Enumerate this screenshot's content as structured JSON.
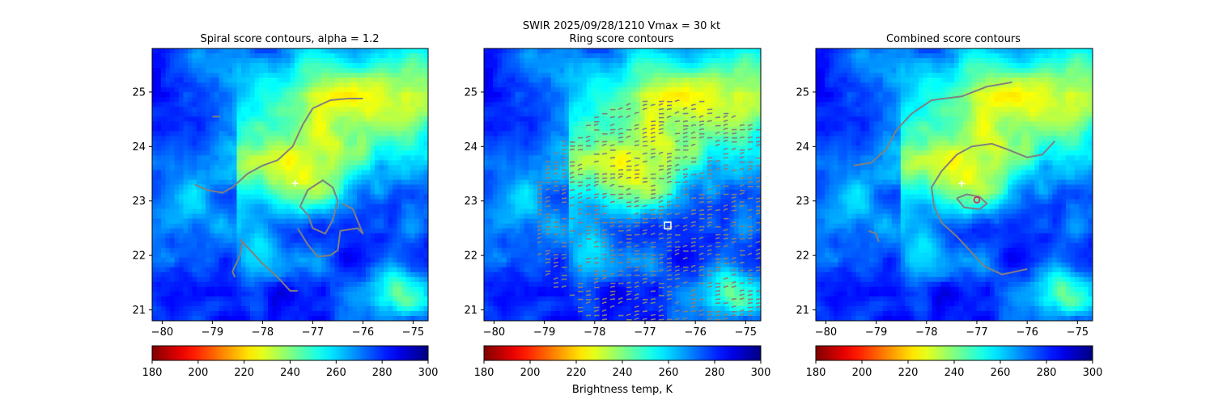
{
  "figure": {
    "suptitle_line1": "SWIR  2025/09/28/1210    Vmax = 30 kt",
    "colorbar_label": "Brightness temp, K"
  },
  "colormap": "jet_reversed",
  "chart_data": [
    {
      "type": "heatmap",
      "title": "Spiral score contours, alpha =  1.2",
      "xlim": [
        -80.2,
        -74.7
      ],
      "ylim": [
        20.8,
        25.8
      ],
      "xticks": [
        -80,
        -79,
        -78,
        -77,
        -76,
        -75
      ],
      "yticks": [
        21,
        22,
        23,
        24,
        25
      ],
      "colorbar": {
        "range": [
          180,
          300
        ],
        "ticks": [
          180,
          200,
          220,
          240,
          260,
          280,
          300
        ]
      },
      "markers": [
        {
          "symbol": "+",
          "color": "#ffffff",
          "x": -77.35,
          "y": 23.32
        }
      ],
      "contours": [
        {
          "color": "#808080",
          "points": [
            [
              -79.35,
              23.3
            ],
            [
              -79.1,
              23.2
            ],
            [
              -78.8,
              23.15
            ],
            [
              -78.6,
              23.25
            ],
            [
              -78.3,
              23.5
            ],
            [
              -78.0,
              23.65
            ],
            [
              -77.7,
              23.75
            ],
            [
              -77.4,
              24.0
            ],
            [
              -77.2,
              24.4
            ],
            [
              -77.0,
              24.7
            ],
            [
              -76.65,
              24.85
            ],
            [
              -76.3,
              24.88
            ],
            [
              -76.0,
              24.88
            ]
          ]
        },
        {
          "color": "#808080",
          "points": [
            [
              -79.0,
              24.55
            ],
            [
              -78.85,
              24.55
            ]
          ]
        },
        {
          "color": "#808080",
          "points": [
            [
              -77.1,
              22.75
            ],
            [
              -77.25,
              22.9
            ],
            [
              -77.1,
              23.2
            ],
            [
              -76.8,
              23.38
            ],
            [
              -76.6,
              23.25
            ],
            [
              -76.5,
              23.0
            ],
            [
              -76.6,
              22.65
            ],
            [
              -76.75,
              22.4
            ],
            [
              -77.0,
              22.5
            ],
            [
              -77.1,
              22.75
            ]
          ]
        },
        {
          "color": "#808080",
          "points": [
            [
              -77.3,
              22.5
            ],
            [
              -77.1,
              22.2
            ],
            [
              -76.9,
              21.98
            ],
            [
              -76.65,
              22.0
            ],
            [
              -76.5,
              22.1
            ],
            [
              -76.45,
              22.45
            ],
            [
              -76.1,
              22.5
            ],
            [
              -76.0,
              22.4
            ],
            [
              -76.2,
              22.85
            ],
            [
              -76.4,
              22.95
            ]
          ]
        },
        {
          "color": "#808080",
          "points": [
            [
              -78.45,
              22.3
            ],
            [
              -78.25,
              22.1
            ],
            [
              -78.0,
              21.85
            ],
            [
              -77.7,
              21.6
            ],
            [
              -77.45,
              21.35
            ],
            [
              -77.3,
              21.35
            ]
          ]
        },
        {
          "color": "#808080",
          "points": [
            [
              -78.4,
              22.25
            ],
            [
              -78.45,
              22.0
            ],
            [
              -78.6,
              21.7
            ],
            [
              -78.55,
              21.6
            ]
          ]
        }
      ]
    },
    {
      "type": "heatmap",
      "title": "Ring score contours",
      "xlim": [
        -80.2,
        -74.7
      ],
      "ylim": [
        20.8,
        25.8
      ],
      "xticks": [
        -80,
        -79,
        -78,
        -77,
        -76,
        -75
      ],
      "yticks": [
        21,
        22,
        23,
        24,
        25
      ],
      "colorbar": {
        "range": [
          180,
          300
        ],
        "ticks": [
          180,
          200,
          220,
          240,
          260,
          280,
          300
        ]
      },
      "markers": [
        {
          "symbol": "square",
          "color": "#ffffff",
          "x": -76.55,
          "y": 22.55
        }
      ],
      "ring_region": {
        "center": [
          -76.6,
          22.65
        ],
        "radius_lon": 2.7,
        "radius_lat": 2.25,
        "color": "#808080"
      }
    },
    {
      "type": "heatmap",
      "title": "Combined score contours",
      "xlim": [
        -80.2,
        -74.7
      ],
      "ylim": [
        20.8,
        25.8
      ],
      "xticks": [
        -80,
        -79,
        -78,
        -77,
        -76,
        -75
      ],
      "yticks": [
        21,
        22,
        23,
        24,
        25
      ],
      "colorbar": {
        "range": [
          180,
          300
        ],
        "ticks": [
          180,
          200,
          220,
          240,
          260,
          280,
          300
        ]
      },
      "markers": [
        {
          "symbol": "+",
          "color": "#ffffff",
          "x": -77.3,
          "y": 23.32
        },
        {
          "symbol": "circle",
          "color": "#c0307a",
          "x": -77.0,
          "y": 23.02
        }
      ],
      "contours": [
        {
          "color": "#808080",
          "points": [
            [
              -79.45,
              23.65
            ],
            [
              -79.1,
              23.7
            ],
            [
              -78.8,
              23.95
            ],
            [
              -78.6,
              24.3
            ],
            [
              -78.3,
              24.6
            ],
            [
              -77.9,
              24.85
            ],
            [
              -77.3,
              24.92
            ],
            [
              -76.8,
              25.1
            ],
            [
              -76.3,
              25.18
            ]
          ]
        },
        {
          "color": "#808080",
          "points": [
            [
              -77.85,
              22.9
            ],
            [
              -77.9,
              23.25
            ],
            [
              -77.7,
              23.55
            ],
            [
              -77.4,
              23.85
            ],
            [
              -77.1,
              24.0
            ],
            [
              -76.7,
              24.05
            ],
            [
              -76.4,
              23.95
            ],
            [
              -76.0,
              23.8
            ],
            [
              -75.7,
              23.85
            ],
            [
              -75.45,
              24.1
            ]
          ]
        },
        {
          "color": "#808080",
          "points": [
            [
              -77.85,
              22.9
            ],
            [
              -77.7,
              22.6
            ],
            [
              -77.4,
              22.35
            ],
            [
              -77.1,
              22.05
            ],
            [
              -76.85,
              21.8
            ],
            [
              -76.5,
              21.65
            ],
            [
              -76.0,
              21.75
            ]
          ]
        },
        {
          "color": "#808080",
          "points": [
            [
              -77.4,
              23.05
            ],
            [
              -77.2,
              23.12
            ],
            [
              -76.95,
              23.08
            ],
            [
              -76.8,
              22.95
            ],
            [
              -76.95,
              22.85
            ],
            [
              -77.25,
              22.88
            ],
            [
              -77.4,
              23.05
            ]
          ]
        },
        {
          "color": "#808080",
          "points": [
            [
              -79.15,
              22.45
            ],
            [
              -79.0,
              22.4
            ],
            [
              -78.95,
              22.25
            ]
          ]
        }
      ]
    }
  ]
}
